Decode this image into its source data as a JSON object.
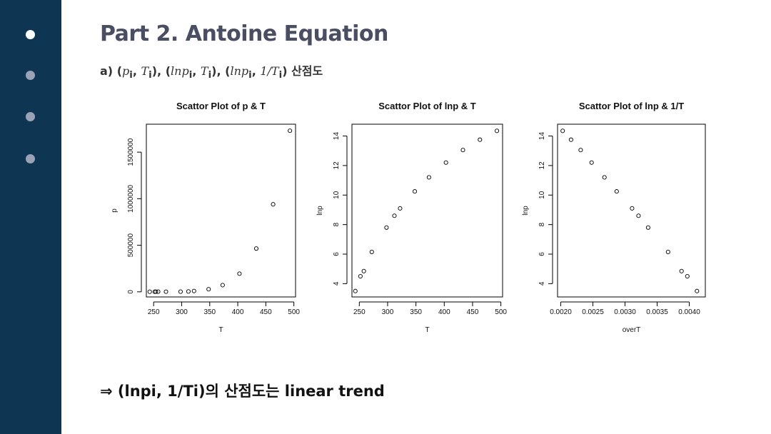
{
  "slide": {
    "title": "Part 2. Antoine Equation",
    "subtitle_prefix": "a)",
    "subtitle_terms": [
      {
        "a": "p",
        "asub": "i",
        "b": "T",
        "bsub": "i"
      },
      {
        "a": "lnp",
        "asub": "i",
        "b": "T",
        "bsub": "i"
      },
      {
        "a": "lnp",
        "asub": "i",
        "b": "1/T",
        "bsub": "i"
      }
    ],
    "subtitle_suffix": "산점도",
    "conclusion": "⇒  (lnpi, 1/Ti)의 산점도는 linear trend"
  },
  "nav": {
    "dots": [
      true,
      false,
      false,
      false
    ]
  },
  "colors": {
    "sidebar": "#0e3551",
    "dot_active": "#ffffff",
    "dot_inactive": "#9aa3b5",
    "title": "#4a4e62"
  },
  "chart_data": [
    {
      "type": "scatter",
      "title": "Scattor Plot of p & T",
      "xlabel": "T",
      "ylabel": "p",
      "xlim": [
        237,
        503
      ],
      "ylim": [
        -55000,
        1800000
      ],
      "xticks": [
        250,
        300,
        350,
        400,
        450,
        500
      ],
      "yticks": [
        0,
        500000,
        1000000,
        1500000
      ],
      "x": [
        243,
        252,
        254,
        258,
        272,
        298,
        312,
        322,
        348,
        373,
        403,
        433,
        463,
        493
      ],
      "y": [
        1000,
        1000,
        1500,
        2000,
        1500,
        2000,
        4000,
        9000,
        28000,
        72000,
        195000,
        465000,
        940000,
        1730000
      ]
    },
    {
      "type": "scatter",
      "title": "Scattor Plot of lnp & T",
      "xlabel": "T",
      "ylabel": "lnp",
      "xlim": [
        237,
        503
      ],
      "ylim": [
        3.1,
        14.8
      ],
      "xticks": [
        250,
        300,
        350,
        400,
        450,
        500
      ],
      "yticks": [
        4,
        6,
        8,
        10,
        12,
        14
      ],
      "x": [
        243,
        252,
        258,
        272,
        298,
        312,
        322,
        348,
        373,
        403,
        433,
        463,
        493
      ],
      "y": [
        3.5,
        4.5,
        4.85,
        6.15,
        7.8,
        8.6,
        9.1,
        10.25,
        11.2,
        12.2,
        13.05,
        13.75,
        14.35
      ]
    },
    {
      "type": "scatter",
      "title": "Scattor Plot of lnp & 1/T",
      "xlabel": "overT",
      "ylabel": "lnp",
      "xlim": [
        0.00195,
        0.00425
      ],
      "ylim": [
        3.1,
        14.8
      ],
      "xticks": [
        0.002,
        0.0025,
        0.003,
        0.0035,
        0.004
      ],
      "xtick_labels": [
        "0.0020",
        "0.0025",
        "0.0030",
        "0.0035",
        "0.0040"
      ],
      "yticks": [
        4,
        6,
        8,
        10,
        12,
        14
      ],
      "x": [
        0.00203,
        0.00216,
        0.00231,
        0.00248,
        0.00268,
        0.00287,
        0.00311,
        0.00321,
        0.00336,
        0.00367,
        0.00388,
        0.00397,
        0.00412
      ],
      "y": [
        14.35,
        13.75,
        13.05,
        12.2,
        11.2,
        10.25,
        9.1,
        8.6,
        7.8,
        6.15,
        4.85,
        4.5,
        3.5
      ]
    }
  ]
}
